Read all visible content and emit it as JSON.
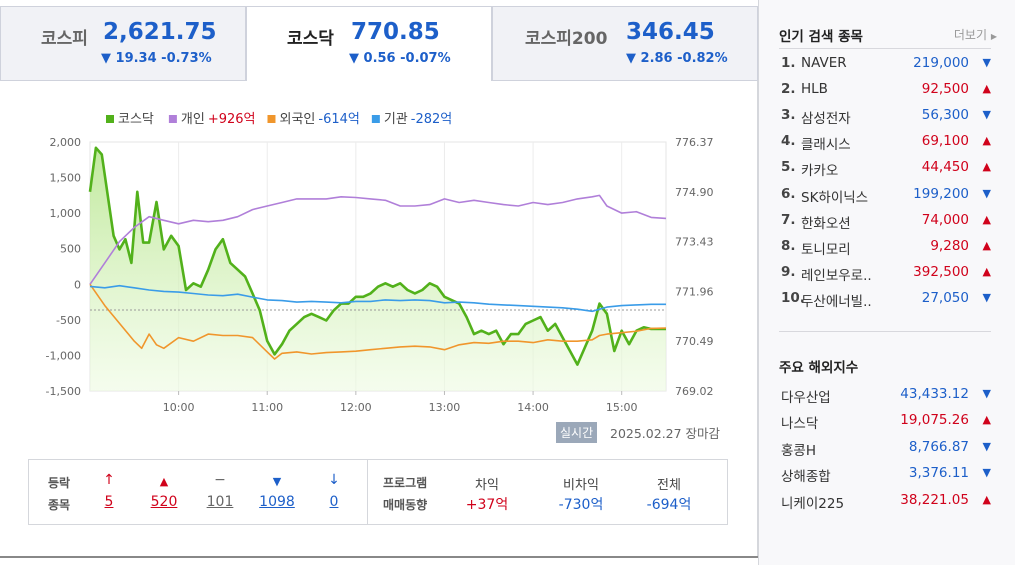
{
  "tabs": [
    {
      "name": "코스피",
      "value": "2,621.75",
      "change": "▼ 19.34 -0.73%"
    },
    {
      "name": "코스닥",
      "value": "770.85",
      "change": "▼ 0.56 -0.07%"
    },
    {
      "name": "코스피200",
      "value": "346.45",
      "change": "▼ 2.86 -0.82%"
    }
  ],
  "legend": [
    {
      "label": "코스닥",
      "value": "",
      "color": "#52b11b"
    },
    {
      "label": "개인",
      "value": "+926억",
      "color": "#b07fd9"
    },
    {
      "label": "외국인",
      "value": "-614억",
      "color": "#f0962c"
    },
    {
      "label": "기관",
      "value": "-282억",
      "color": "#3a9ce8"
    }
  ],
  "chart_data": {
    "type": "line",
    "x_ticks": [
      "10:00",
      "11:00",
      "12:00",
      "13:00",
      "14:00",
      "15:00"
    ],
    "y_left_ticks": [
      "2,000",
      "1,500",
      "1,000",
      "500",
      "0",
      "-500",
      "-1,000",
      "-1,500"
    ],
    "y_left_range": [
      -1500,
      2000
    ],
    "y_right_ticks": [
      "776.37",
      "774.90",
      "773.43",
      "771.96",
      "770.49",
      "769.02"
    ],
    "y_right_range": [
      769.02,
      776.37
    ],
    "x_range": [
      "09:00",
      "15:30"
    ],
    "reference_line": 771.41,
    "series": [
      {
        "name": "코스닥",
        "axis": "right",
        "points": [
          [
            "09:00",
            774.9
          ],
          [
            "09:04",
            776.2
          ],
          [
            "09:08",
            776.0
          ],
          [
            "09:12",
            774.8
          ],
          [
            "09:16",
            773.6
          ],
          [
            "09:20",
            773.2
          ],
          [
            "09:24",
            773.5
          ],
          [
            "09:28",
            772.8
          ],
          [
            "09:32",
            774.9
          ],
          [
            "09:36",
            773.4
          ],
          [
            "09:40",
            773.4
          ],
          [
            "09:45",
            774.6
          ],
          [
            "09:50",
            773.2
          ],
          [
            "09:55",
            773.6
          ],
          [
            "10:00",
            773.3
          ],
          [
            "10:05",
            772.0
          ],
          [
            "10:10",
            772.2
          ],
          [
            "10:15",
            772.1
          ],
          [
            "10:20",
            772.6
          ],
          [
            "10:25",
            773.2
          ],
          [
            "10:30",
            773.5
          ],
          [
            "10:35",
            772.8
          ],
          [
            "10:40",
            772.6
          ],
          [
            "10:45",
            772.4
          ],
          [
            "10:50",
            771.9
          ],
          [
            "10:55",
            771.4
          ],
          [
            "11:00",
            770.5
          ],
          [
            "11:05",
            770.1
          ],
          [
            "11:10",
            770.4
          ],
          [
            "11:15",
            770.8
          ],
          [
            "11:20",
            771.0
          ],
          [
            "11:25",
            771.2
          ],
          [
            "11:30",
            771.3
          ],
          [
            "11:35",
            771.2
          ],
          [
            "11:40",
            771.1
          ],
          [
            "11:45",
            771.4
          ],
          [
            "11:50",
            771.6
          ],
          [
            "11:55",
            771.6
          ],
          [
            "12:00",
            771.8
          ],
          [
            "12:05",
            771.8
          ],
          [
            "12:10",
            771.9
          ],
          [
            "12:15",
            772.1
          ],
          [
            "12:20",
            772.2
          ],
          [
            "12:25",
            772.1
          ],
          [
            "12:30",
            772.2
          ],
          [
            "12:35",
            772.0
          ],
          [
            "12:40",
            771.9
          ],
          [
            "12:45",
            772.0
          ],
          [
            "12:50",
            772.2
          ],
          [
            "12:55",
            772.1
          ],
          [
            "13:00",
            771.8
          ],
          [
            "13:05",
            771.7
          ],
          [
            "13:10",
            771.6
          ],
          [
            "13:15",
            771.2
          ],
          [
            "13:20",
            770.7
          ],
          [
            "13:25",
            770.8
          ],
          [
            "13:30",
            770.7
          ],
          [
            "13:35",
            770.8
          ],
          [
            "13:40",
            770.4
          ],
          [
            "13:45",
            770.7
          ],
          [
            "13:50",
            770.7
          ],
          [
            "13:55",
            771.0
          ],
          [
            "14:00",
            771.1
          ],
          [
            "14:05",
            771.2
          ],
          [
            "14:10",
            770.8
          ],
          [
            "14:15",
            771.0
          ],
          [
            "14:20",
            770.6
          ],
          [
            "14:25",
            770.2
          ],
          [
            "14:30",
            769.8
          ],
          [
            "14:35",
            770.3
          ],
          [
            "14:40",
            770.8
          ],
          [
            "14:45",
            771.6
          ],
          [
            "14:50",
            771.3
          ],
          [
            "14:55",
            770.2
          ],
          [
            "15:00",
            770.8
          ],
          [
            "15:05",
            770.4
          ],
          [
            "15:10",
            770.8
          ],
          [
            "15:15",
            770.9
          ],
          [
            "15:20",
            770.85
          ],
          [
            "15:30",
            770.85
          ]
        ]
      },
      {
        "name": "개인",
        "axis": "left",
        "points": [
          [
            "09:00",
            0
          ],
          [
            "09:10",
            300
          ],
          [
            "09:20",
            600
          ],
          [
            "09:30",
            800
          ],
          [
            "09:40",
            950
          ],
          [
            "09:50",
            900
          ],
          [
            "10:00",
            850
          ],
          [
            "10:10",
            900
          ],
          [
            "10:20",
            880
          ],
          [
            "10:30",
            900
          ],
          [
            "10:40",
            950
          ],
          [
            "10:50",
            1050
          ],
          [
            "11:00",
            1100
          ],
          [
            "11:10",
            1150
          ],
          [
            "11:20",
            1200
          ],
          [
            "11:30",
            1200
          ],
          [
            "11:40",
            1200
          ],
          [
            "11:50",
            1230
          ],
          [
            "12:00",
            1220
          ],
          [
            "12:10",
            1200
          ],
          [
            "12:20",
            1180
          ],
          [
            "12:30",
            1100
          ],
          [
            "12:40",
            1100
          ],
          [
            "12:50",
            1120
          ],
          [
            "13:00",
            1200
          ],
          [
            "13:10",
            1150
          ],
          [
            "13:20",
            1180
          ],
          [
            "13:30",
            1150
          ],
          [
            "13:40",
            1120
          ],
          [
            "13:50",
            1100
          ],
          [
            "14:00",
            1150
          ],
          [
            "14:10",
            1120
          ],
          [
            "14:20",
            1150
          ],
          [
            "14:30",
            1200
          ],
          [
            "14:40",
            1230
          ],
          [
            "14:45",
            1250
          ],
          [
            "14:50",
            1100
          ],
          [
            "15:00",
            1000
          ],
          [
            "15:10",
            1020
          ],
          [
            "15:20",
            940
          ],
          [
            "15:30",
            926
          ]
        ]
      },
      {
        "name": "외국인",
        "axis": "left",
        "points": [
          [
            "09:00",
            0
          ],
          [
            "09:10",
            -300
          ],
          [
            "09:20",
            -550
          ],
          [
            "09:30",
            -800
          ],
          [
            "09:35",
            -900
          ],
          [
            "09:40",
            -700
          ],
          [
            "09:45",
            -850
          ],
          [
            "09:50",
            -900
          ],
          [
            "10:00",
            -750
          ],
          [
            "10:10",
            -800
          ],
          [
            "10:20",
            -700
          ],
          [
            "10:30",
            -720
          ],
          [
            "10:40",
            -720
          ],
          [
            "10:50",
            -750
          ],
          [
            "11:00",
            -950
          ],
          [
            "11:05",
            -1050
          ],
          [
            "11:10",
            -970
          ],
          [
            "11:20",
            -950
          ],
          [
            "11:30",
            -980
          ],
          [
            "11:40",
            -960
          ],
          [
            "11:50",
            -950
          ],
          [
            "12:00",
            -940
          ],
          [
            "12:10",
            -920
          ],
          [
            "12:20",
            -900
          ],
          [
            "12:30",
            -880
          ],
          [
            "12:40",
            -870
          ],
          [
            "12:50",
            -880
          ],
          [
            "13:00",
            -920
          ],
          [
            "13:10",
            -850
          ],
          [
            "13:20",
            -820
          ],
          [
            "13:30",
            -830
          ],
          [
            "13:40",
            -800
          ],
          [
            "13:50",
            -800
          ],
          [
            "14:00",
            -820
          ],
          [
            "14:10",
            -780
          ],
          [
            "14:20",
            -800
          ],
          [
            "14:30",
            -800
          ],
          [
            "14:40",
            -780
          ],
          [
            "14:45",
            -720
          ],
          [
            "14:50",
            -700
          ],
          [
            "15:00",
            -680
          ],
          [
            "15:10",
            -660
          ],
          [
            "15:20",
            -620
          ],
          [
            "15:30",
            -614
          ]
        ]
      },
      {
        "name": "기관",
        "axis": "left",
        "points": [
          [
            "09:00",
            -30
          ],
          [
            "09:10",
            -50
          ],
          [
            "09:20",
            -20
          ],
          [
            "09:30",
            -50
          ],
          [
            "09:40",
            -80
          ],
          [
            "09:50",
            -100
          ],
          [
            "10:00",
            -110
          ],
          [
            "10:10",
            -130
          ],
          [
            "10:20",
            -150
          ],
          [
            "10:30",
            -160
          ],
          [
            "10:40",
            -140
          ],
          [
            "10:50",
            -180
          ],
          [
            "11:00",
            -220
          ],
          [
            "11:10",
            -230
          ],
          [
            "11:20",
            -250
          ],
          [
            "11:30",
            -240
          ],
          [
            "11:40",
            -250
          ],
          [
            "11:50",
            -260
          ],
          [
            "12:00",
            -240
          ],
          [
            "12:10",
            -240
          ],
          [
            "12:20",
            -220
          ],
          [
            "12:30",
            -230
          ],
          [
            "12:40",
            -220
          ],
          [
            "12:50",
            -230
          ],
          [
            "13:00",
            -260
          ],
          [
            "13:10",
            -250
          ],
          [
            "13:20",
            -260
          ],
          [
            "13:30",
            -280
          ],
          [
            "13:40",
            -290
          ],
          [
            "13:50",
            -300
          ],
          [
            "14:00",
            -310
          ],
          [
            "14:10",
            -320
          ],
          [
            "14:20",
            -330
          ],
          [
            "14:30",
            -350
          ],
          [
            "14:40",
            -380
          ],
          [
            "14:50",
            -320
          ],
          [
            "15:00",
            -300
          ],
          [
            "15:10",
            -290
          ],
          [
            "15:20",
            -282
          ],
          [
            "15:30",
            -282
          ]
        ]
      }
    ]
  },
  "timestamp": {
    "badge": "실시간",
    "text": "2025.02.27 장마감"
  },
  "stats": {
    "label1": "등락",
    "label2": "종목",
    "items": [
      {
        "icon": "↑",
        "value": "5",
        "color": "#d0021b"
      },
      {
        "icon": "▲",
        "value": "520",
        "color": "#d0021b"
      },
      {
        "icon": "−",
        "value": "101",
        "color": "#666666"
      },
      {
        "icon": "▼",
        "value": "1098",
        "color": "#1d5fc9"
      },
      {
        "icon": "↓",
        "value": "0",
        "color": "#1d5fc9"
      }
    ],
    "program_label1": "프로그램",
    "program_label2": "매매동향",
    "program": [
      {
        "label": "차익",
        "value": "+37억",
        "color": "#d0021b"
      },
      {
        "label": "비차익",
        "value": "-730억",
        "color": "#1d5fc9"
      },
      {
        "label": "전체",
        "value": "-694억",
        "color": "#1d5fc9"
      }
    ]
  },
  "popular": {
    "title": "인기 검색 종목",
    "more": "더보기",
    "items": [
      {
        "rank": "1.",
        "name": "NAVER",
        "price": "219,000",
        "dir": "down"
      },
      {
        "rank": "2.",
        "name": "HLB",
        "price": "92,500",
        "dir": "up"
      },
      {
        "rank": "3.",
        "name": "삼성전자",
        "price": "56,300",
        "dir": "down"
      },
      {
        "rank": "4.",
        "name": "클래시스",
        "price": "69,100",
        "dir": "up"
      },
      {
        "rank": "5.",
        "name": "카카오",
        "price": "44,450",
        "dir": "up"
      },
      {
        "rank": "6.",
        "name": "SK하이닉스",
        "price": "199,200",
        "dir": "down"
      },
      {
        "rank": "7.",
        "name": "한화오션",
        "price": "74,000",
        "dir": "up"
      },
      {
        "rank": "8.",
        "name": "토니모리",
        "price": "9,280",
        "dir": "up"
      },
      {
        "rank": "9.",
        "name": "레인보우로..",
        "price": "392,500",
        "dir": "up"
      },
      {
        "rank": "10.",
        "name": "두산에너빌..",
        "price": "27,050",
        "dir": "down"
      }
    ]
  },
  "world": {
    "title": "주요 해외지수",
    "items": [
      {
        "name": "다우산업",
        "value": "43,433.12",
        "dir": "down"
      },
      {
        "name": "나스닥",
        "value": "19,075.26",
        "dir": "up"
      },
      {
        "name": "홍콩H",
        "value": "8,766.87",
        "dir": "down"
      },
      {
        "name": "상해종합",
        "value": "3,376.11",
        "dir": "down"
      },
      {
        "name": "니케이225",
        "value": "38,221.05",
        "dir": "up"
      }
    ]
  }
}
